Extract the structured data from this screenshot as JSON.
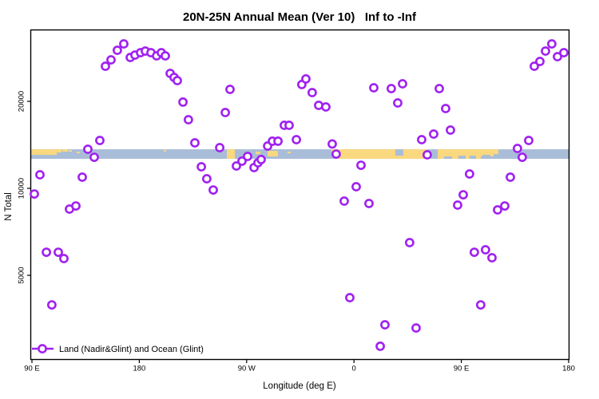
{
  "title": "20N-25N Annual Mean (Ver 10)   Inf to -Inf",
  "colors": {
    "point_stroke": "#A020F0",
    "point_fill": "#FFFFFF",
    "ocean": "#A9BDD8",
    "land": "#FAD87F",
    "axis": "#000000"
  },
  "chart_data": {
    "type": "scatter",
    "title": "20N-25N Annual Mean (Ver 10)   Inf to -Inf",
    "xlabel": "Longitude (deg E)",
    "ylabel": "N Total",
    "x_axis": {
      "range_deg": [
        90,
        540
      ],
      "note": "longitude plotted eastward from 90E wrapping 450 degrees",
      "ticks": [
        {
          "label": "90 E",
          "lon": 90
        },
        {
          "label": "180",
          "lon": 180
        },
        {
          "label": "90 W",
          "lon": 270
        },
        {
          "label": "0",
          "lon": 360
        },
        {
          "label": "90 E",
          "lon": 450
        },
        {
          "label": "180",
          "lon": 540
        }
      ]
    },
    "y_axis": {
      "scale": "log",
      "range": [
        2700,
        35000
      ],
      "ticks": [
        {
          "label": "5000",
          "value": 5000
        },
        {
          "label": "10000",
          "value": 10000
        },
        {
          "label": "20000",
          "value": 20000
        }
      ]
    },
    "legend": {
      "entries": [
        {
          "label": "Land (Nadir&Glint) and Ocean (Glint)",
          "marker": "open-circle-on-line",
          "color": "#A020F0"
        }
      ],
      "position": "bottom-left"
    },
    "series": [
      {
        "name": "Land (Nadir&Glint) and Ocean (Glint)",
        "marker": "open-circle",
        "points": [
          [
            151.6,
            26450
          ],
          [
            156.3,
            27830
          ],
          [
            161.6,
            30050
          ],
          [
            167.0,
            31610
          ],
          [
            172.4,
            28380
          ],
          [
            176.4,
            28920
          ],
          [
            181.1,
            29480
          ],
          [
            185.1,
            29860
          ],
          [
            189.8,
            29480
          ],
          [
            194.5,
            28740
          ],
          [
            198.5,
            29480
          ],
          [
            201.8,
            28740
          ],
          [
            205.9,
            24990
          ],
          [
            209.2,
            24210
          ],
          [
            211.9,
            23600
          ],
          [
            216.6,
            19880
          ],
          [
            221.2,
            17280
          ],
          [
            226.6,
            14370
          ],
          [
            247.4,
            13830
          ],
          [
            270.8,
            12900
          ],
          [
            276.2,
            11800
          ],
          [
            279.5,
            12260
          ],
          [
            282.2,
            12580
          ],
          [
            261.4,
            11950
          ],
          [
            266.1,
            12420
          ],
          [
            252.1,
            18300
          ],
          [
            256.1,
            22000
          ],
          [
            287.6,
            14010
          ],
          [
            291.6,
            14560
          ],
          [
            296.3,
            14560
          ],
          [
            301.6,
            16530
          ],
          [
            305.6,
            16530
          ],
          [
            311.7,
            14740
          ],
          [
            316.3,
            22870
          ],
          [
            319.7,
            23910
          ],
          [
            325.0,
            21450
          ],
          [
            330.4,
            19380
          ],
          [
            336.4,
            19130
          ],
          [
            341.8,
            14240
          ],
          [
            345.1,
            13140
          ],
          [
            365.9,
            12020
          ],
          [
            361.9,
            10130
          ],
          [
            351.8,
            9030
          ],
          [
            372.6,
            8860
          ],
          [
            356.5,
            4185
          ],
          [
            406.7,
            6489
          ],
          [
            456.9,
            11210
          ],
          [
            451.6,
            9500
          ],
          [
            446.9,
            8750
          ],
          [
            491.1,
            10930
          ],
          [
            480.4,
            8420
          ],
          [
            486.4,
            8690
          ],
          [
            460.9,
            6010
          ],
          [
            470.3,
            6130
          ],
          [
            475.7,
            5750
          ],
          [
            466.3,
            3950
          ],
          [
            386.0,
            3370
          ],
          [
            412.1,
            3287
          ],
          [
            382.0,
            2840
          ],
          [
            106.7,
            3950
          ],
          [
            96.7,
            11140
          ],
          [
            92.0,
            9560
          ],
          [
            132.2,
            10930
          ],
          [
            136.9,
            13660
          ],
          [
            142.2,
            12810
          ],
          [
            146.9,
            14650
          ],
          [
            121.5,
            8475
          ],
          [
            126.8,
            8690
          ],
          [
            102.1,
            6010
          ],
          [
            112.1,
            6010
          ],
          [
            116.8,
            5713
          ],
          [
            376.6,
            22280
          ],
          [
            391.3,
            22140
          ],
          [
            400.7,
            23010
          ],
          [
            396.7,
            19750
          ],
          [
            431.5,
            22140
          ],
          [
            436.9,
            18890
          ],
          [
            440.9,
            15910
          ],
          [
            416.8,
            14740
          ],
          [
            426.8,
            15410
          ],
          [
            421.4,
            13060
          ],
          [
            497.1,
            13740
          ],
          [
            506.5,
            14650
          ],
          [
            501.1,
            12810
          ],
          [
            511.2,
            26450
          ],
          [
            515.9,
            27480
          ],
          [
            520.6,
            29860
          ],
          [
            525.9,
            31610
          ],
          [
            530.6,
            28560
          ],
          [
            536.0,
            29480
          ],
          [
            232.0,
            11870
          ],
          [
            236.6,
            10790
          ],
          [
            242.0,
            9870
          ]
        ]
      }
    ],
    "map_band": {
      "description": "land/ocean strip for 20N-25N drawn across plot at N~12650-13650",
      "n_top": 13650,
      "n_bottom": 12650,
      "land_patches": [
        {
          "lon0": 88.7,
          "lon1": 110.8,
          "top": 0.0,
          "bot": 0.58
        },
        {
          "lon0": 110.8,
          "lon1": 114.8,
          "top": 0.0,
          "bot": 0.33
        },
        {
          "lon0": 115.4,
          "lon1": 120.1,
          "top": 0.0,
          "bot": 0.25
        },
        {
          "lon0": 120.8,
          "lon1": 123.5,
          "top": 0.08,
          "bot": 0.25
        },
        {
          "lon0": 127.5,
          "lon1": 130.2,
          "top": 0.25,
          "bot": 0.42
        },
        {
          "lon0": 200.5,
          "lon1": 202.5,
          "top": 0.08,
          "bot": 0.25
        },
        {
          "lon0": 253.4,
          "lon1": 260.1,
          "top": 0.0,
          "bot": 1.0
        },
        {
          "lon0": 277.5,
          "lon1": 281.5,
          "top": 0.25,
          "bot": 0.5
        },
        {
          "lon0": 287.6,
          "lon1": 296.3,
          "top": 0.17,
          "bot": 0.75
        },
        {
          "lon0": 304.3,
          "lon1": 307.0,
          "top": 0.25,
          "bot": 0.42
        },
        {
          "lon0": 341.1,
          "lon1": 345.1,
          "top": 0.0,
          "bot": 0.33
        },
        {
          "lon0": 345.1,
          "lon1": 421.4,
          "top": 0.0,
          "bot": 1.0
        },
        {
          "lon0": 430.2,
          "lon1": 466.3,
          "top": 0.0,
          "bot": 1.0
        },
        {
          "lon0": 465.0,
          "lon1": 477.1,
          "top": 0.0,
          "bot": 0.75
        },
        {
          "lon0": 475.7,
          "lon1": 481.1,
          "top": 0.0,
          "bot": 0.5
        }
      ],
      "ocean_notches": [
        {
          "lon0": 394.7,
          "lon1": 401.4,
          "top": 0.0,
          "bot": 0.67
        },
        {
          "lon0": 435.5,
          "lon1": 442.2,
          "top": 0.75,
          "bot": 1.0
        },
        {
          "lon0": 447.5,
          "lon1": 453.6,
          "top": 0.67,
          "bot": 1.0
        },
        {
          "lon0": 456.9,
          "lon1": 462.3,
          "top": 0.67,
          "bot": 1.0
        },
        {
          "lon0": 467.7,
          "lon1": 474.4,
          "top": 0.58,
          "bot": 1.0
        }
      ]
    }
  }
}
